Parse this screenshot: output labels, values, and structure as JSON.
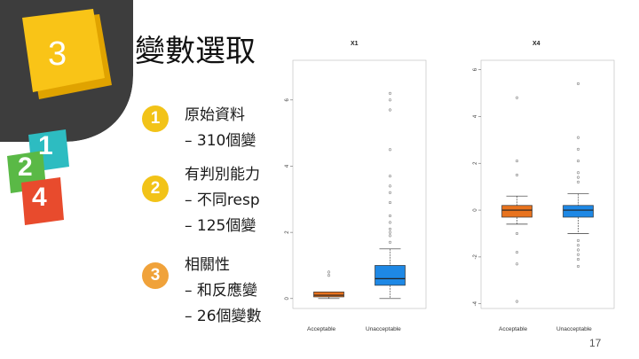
{
  "slide": {
    "section_number": "3",
    "title": "變數選取",
    "page_number": "17"
  },
  "decor": {
    "tiles": [
      "1",
      "2",
      "4"
    ],
    "colors": {
      "gray": "#3d3d3d",
      "yellow": "#f9c417",
      "teal": "#2dbcc1",
      "green": "#5ab946",
      "red": "#e84b2d",
      "blue_box": "#1e88e5",
      "orange_box": "#e8731e"
    }
  },
  "items": [
    {
      "badge": "1",
      "badge_color": "#f2c318",
      "lines": [
        "原始資料",
        "– 310個變"
      ]
    },
    {
      "badge": "2",
      "badge_color": "#f2c318",
      "lines": [
        "有判別能力",
        "– 不同resp",
        "– 125個變"
      ]
    },
    {
      "badge": "3",
      "badge_color": "#f0a23a",
      "lines": [
        "相關性",
        "– 和反應變",
        "– 26個變數"
      ]
    }
  ],
  "chart_data": [
    {
      "type": "box",
      "title": "X1",
      "categories": [
        "Acceptable",
        "Unacceptable"
      ],
      "y_ticks": [
        "0",
        "2",
        "4",
        "6"
      ],
      "series": [
        {
          "category": "Acceptable",
          "color": "#e8731e",
          "min": 0.0,
          "q1": 0.05,
          "median": 0.1,
          "q3": 0.2,
          "max": 0.2,
          "outliers": [
            0.7,
            0.8
          ]
        },
        {
          "category": "Unacceptable",
          "color": "#1e88e5",
          "min": 0.0,
          "q1": 0.4,
          "median": 0.6,
          "q3": 1.0,
          "max": 1.5,
          "outliers": [
            1.7,
            1.9,
            2.0,
            2.1,
            2.3,
            2.5,
            2.9,
            3.2,
            3.4,
            3.7,
            4.5,
            5.7,
            6.0,
            6.2
          ]
        }
      ]
    },
    {
      "type": "box",
      "title": "X4",
      "categories": [
        "Acceptable",
        "Unacceptable"
      ],
      "y_ticks": [
        "-4",
        "-2",
        "0",
        "2",
        "4",
        "6"
      ],
      "series": [
        {
          "category": "Acceptable",
          "color": "#e8731e",
          "min": -0.6,
          "q1": -0.3,
          "median": 0.0,
          "q3": 0.2,
          "max": 0.6,
          "outliers": [
            -1.0,
            -1.8,
            -2.3,
            -3.9,
            1.5,
            2.1,
            4.8
          ]
        },
        {
          "category": "Unacceptable",
          "color": "#1e88e5",
          "min": -1.0,
          "q1": -0.3,
          "median": 0.0,
          "q3": 0.2,
          "max": 0.7,
          "outliers": [
            -1.3,
            -1.5,
            -1.7,
            -1.9,
            -2.1,
            -2.4,
            1.2,
            1.4,
            1.6,
            2.1,
            2.6,
            3.1,
            5.4
          ]
        }
      ]
    }
  ]
}
